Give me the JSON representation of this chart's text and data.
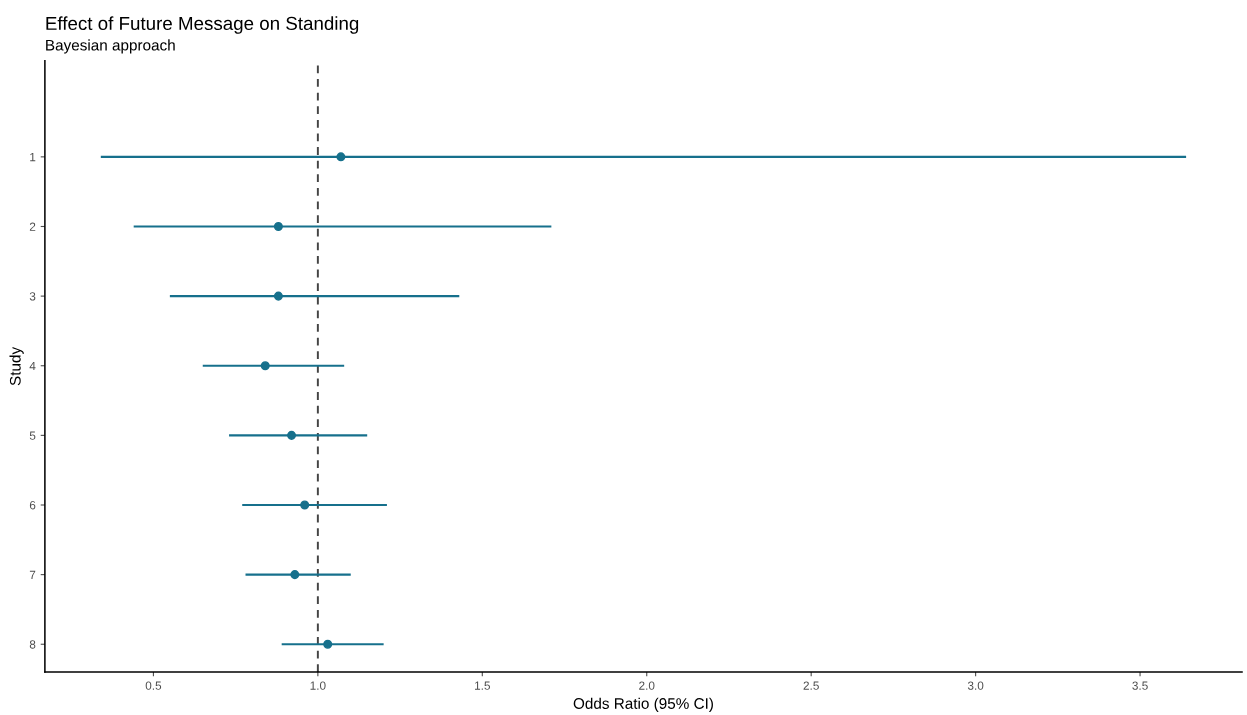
{
  "chart_data": {
    "type": "scatter",
    "orientation": "horizontal",
    "title": "Effect of Future Message on Standing",
    "subtitle": "Bayesian approach",
    "xlabel": "Odds Ratio (95% CI)",
    "ylabel": "Study",
    "categories": [
      "1",
      "2",
      "3",
      "4",
      "5",
      "6",
      "7",
      "8"
    ],
    "values": [
      1.07,
      0.88,
      0.88,
      0.84,
      0.92,
      0.96,
      0.93,
      1.03
    ],
    "errors": [
      [
        0.34,
        3.64
      ],
      [
        0.44,
        1.71
      ],
      [
        0.55,
        1.43
      ],
      [
        0.65,
        1.08
      ],
      [
        0.73,
        1.15
      ],
      [
        0.77,
        1.21
      ],
      [
        0.78,
        1.1
      ],
      [
        0.89,
        1.2
      ]
    ],
    "color": "#16708c",
    "marker": "circle",
    "xlim": [
      0.17,
      3.81
    ],
    "xticks": [
      {
        "value": 0.5,
        "label": "0.5"
      },
      {
        "value": 1.0,
        "label": "1.0"
      },
      {
        "value": 1.5,
        "label": "1.5"
      },
      {
        "value": 2.0,
        "label": "2.0"
      },
      {
        "value": 2.5,
        "label": "2.5"
      },
      {
        "value": 3.0,
        "label": "3.0"
      },
      {
        "value": 3.5,
        "label": "3.5"
      }
    ],
    "ref_lines": [
      {
        "axis": "x",
        "value": 1.0,
        "color": "#444444",
        "line_style": "dashed"
      }
    ],
    "grid": false,
    "legend": false
  }
}
